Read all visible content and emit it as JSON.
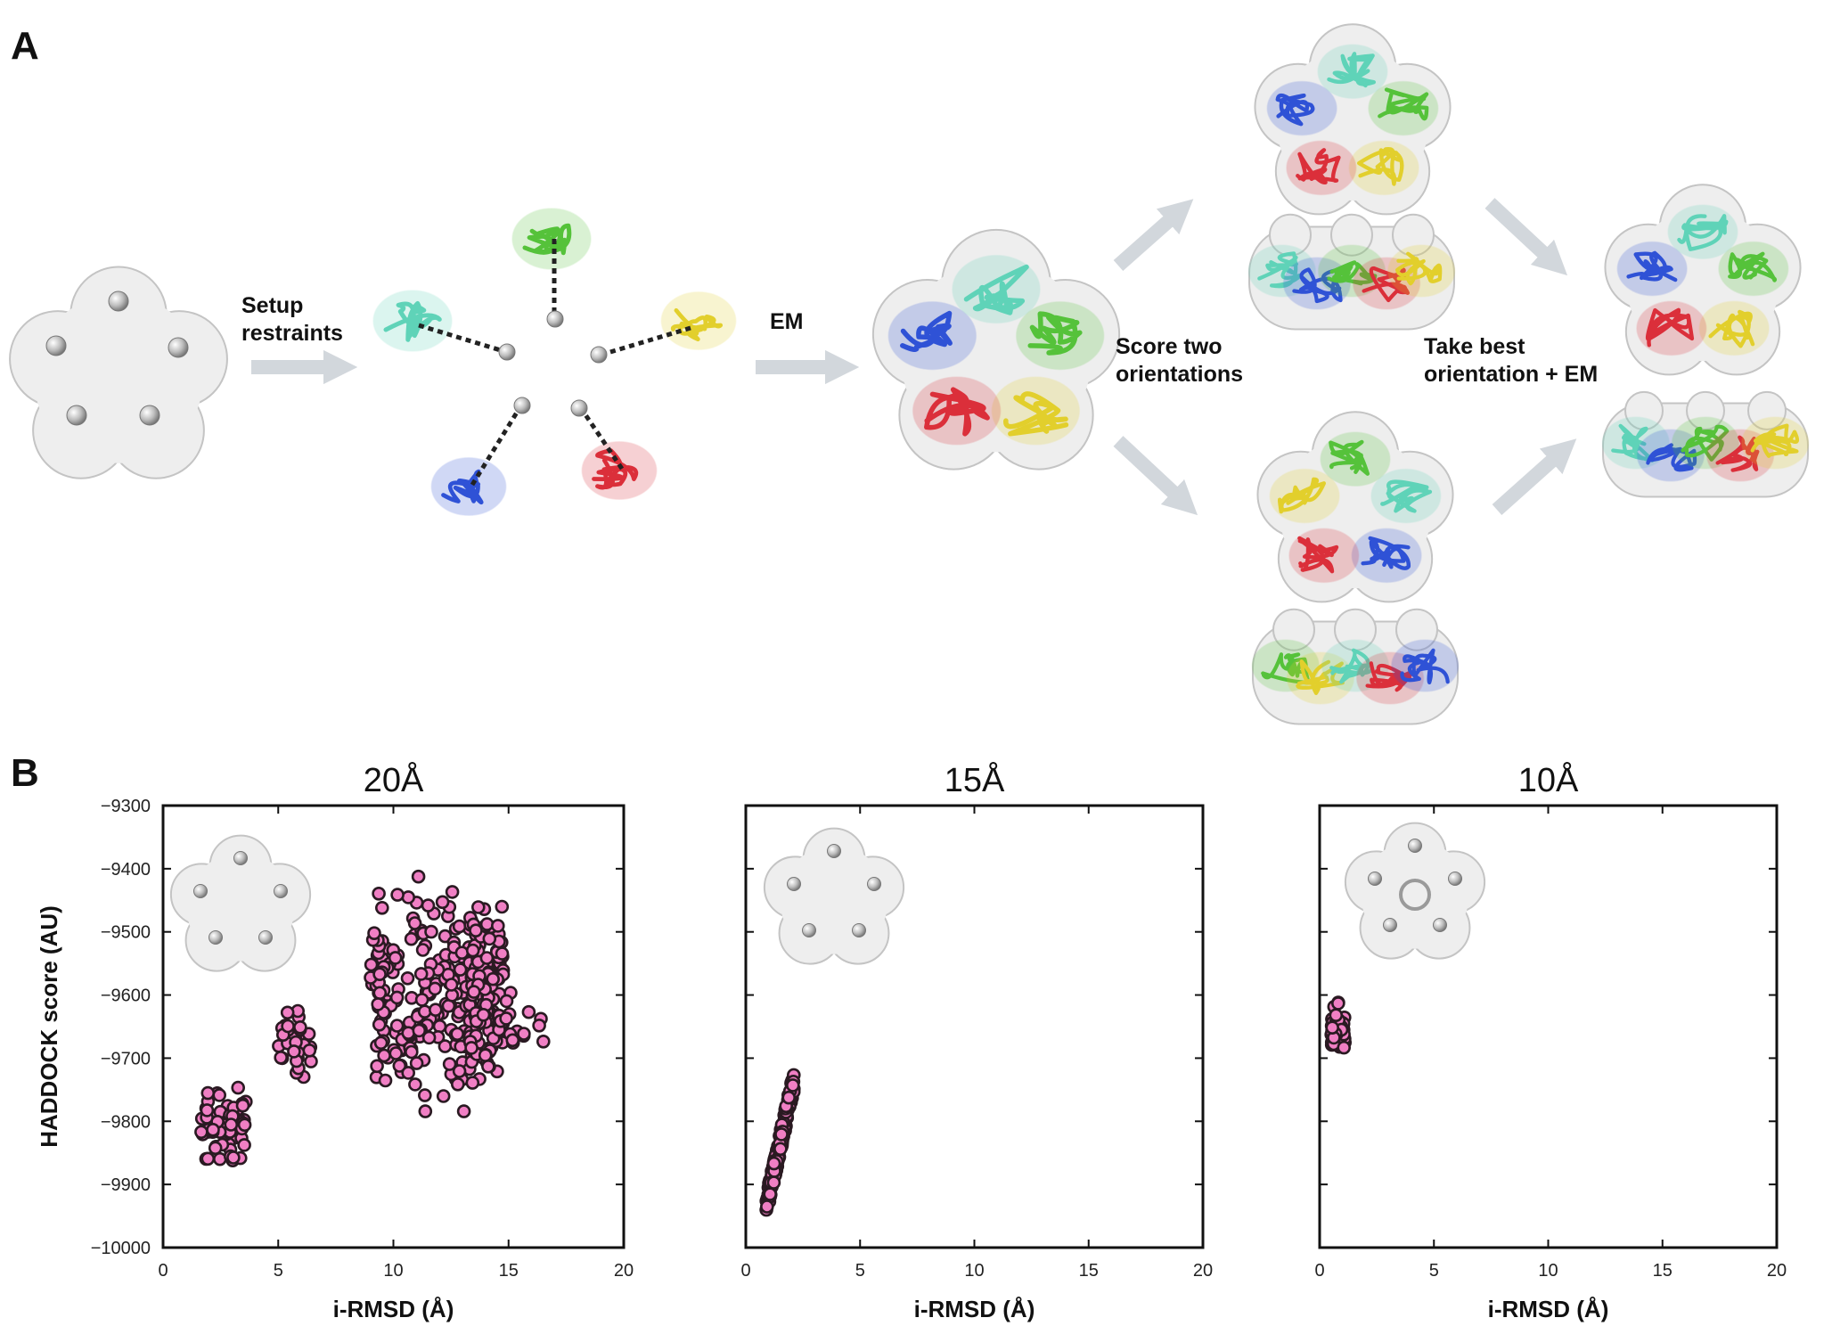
{
  "panel_a": {
    "letter": "A",
    "steps": {
      "setup_line1": "Setup",
      "setup_line2": "restraints",
      "em": "EM",
      "score_line1": "Score two",
      "score_line2": "orientations",
      "take_line1": "Take best",
      "take_line2": "orientation + EM"
    }
  },
  "panel_b": {
    "letter": "B"
  },
  "colors": {
    "marker_fill": "#f07fc4",
    "marker_edge": "#2a1a22",
    "arrow": "#d2d7dc",
    "map": "#eeeeee",
    "cyan": "#5fd3b8",
    "green": "#55c23a",
    "yellow": "#e2cf2c",
    "blue": "#2f52d6",
    "red": "#db2f3a"
  },
  "chart_data": [
    {
      "type": "scatter",
      "title": "20Å",
      "xlabel": "i-RMSD (Å)",
      "ylabel": "HADDOCK score (AU)",
      "xlim": [
        0,
        20
      ],
      "ylim": [
        -10000,
        -9300
      ],
      "xticks": [
        "0",
        "5",
        "10",
        "15",
        "20"
      ],
      "yticks": [
        "-9300",
        "-9400",
        "-9500",
        "-9600",
        "-9700",
        "-9800",
        "-9900",
        "-10000"
      ],
      "clusters": [
        {
          "x_range": [
            1.6,
            3.6
          ],
          "y_range": [
            -9880,
            -9730
          ],
          "n": 70
        },
        {
          "x_range": [
            5.0,
            6.5
          ],
          "y_range": [
            -9750,
            -9610
          ],
          "n": 35
        },
        {
          "x_range": [
            9.0,
            13.5
          ],
          "y_range": [
            -9850,
            -9380
          ],
          "n": 190
        },
        {
          "x_range": [
            13.3,
            14.8
          ],
          "y_range": [
            -9820,
            -9390
          ],
          "n": 130
        },
        {
          "x_range": [
            14.8,
            16.6
          ],
          "y_range": [
            -9730,
            -9550
          ],
          "n": 14
        }
      ]
    },
    {
      "type": "scatter",
      "title": "15Å",
      "xlabel": "i-RMSD (Å)",
      "ylabel": "",
      "xlim": [
        0,
        20
      ],
      "ylim": [
        -10000,
        -9300
      ],
      "xticks": [
        "0",
        "5",
        "10",
        "15",
        "20"
      ],
      "clusters": [
        {
          "x_range": [
            0.9,
            2.1
          ],
          "y_range": [
            -9950,
            -9720
          ],
          "n": 140,
          "trend": "rising"
        }
      ]
    },
    {
      "type": "scatter",
      "title": "10Å",
      "xlabel": "i-RMSD (Å)",
      "ylabel": "",
      "xlim": [
        0,
        20
      ],
      "ylim": [
        -10000,
        -9300
      ],
      "xticks": [
        "0",
        "5",
        "10",
        "15",
        "20"
      ],
      "clusters": [
        {
          "x_range": [
            0.5,
            1.1
          ],
          "y_range": [
            -9710,
            -9605
          ],
          "n": 60
        }
      ]
    }
  ]
}
